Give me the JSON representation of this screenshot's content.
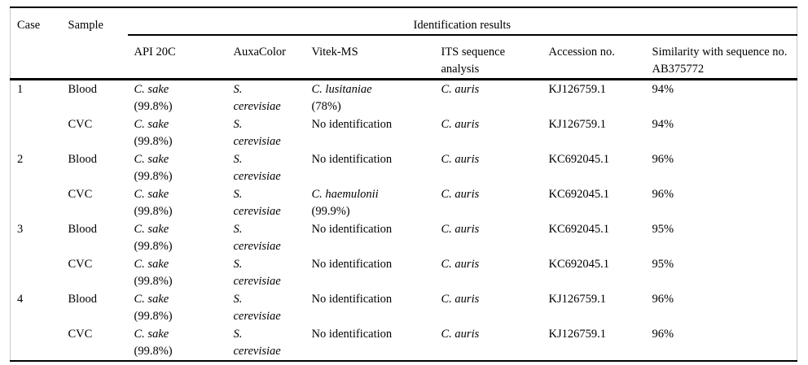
{
  "table": {
    "title": "Identification results table",
    "header": {
      "case": "Case",
      "sample": "Sample",
      "group": "Identification results",
      "columns": [
        "API 20C",
        "AuxaColor",
        "Vitek-MS",
        "ITS sequence analysis",
        "Accession no.",
        "Similarity with sequence no. AB375772"
      ]
    },
    "rows": [
      {
        "case": "1",
        "sample": "Blood",
        "cells": [
          {
            "lines": [
              {
                "t": "C. sake",
                "i": true
              },
              {
                "t": "(99.8%)",
                "i": false
              }
            ]
          },
          {
            "lines": [
              {
                "t": "S.",
                "i": true
              },
              {
                "t": "cerevisiae",
                "i": true
              }
            ]
          },
          {
            "lines": [
              {
                "t": "C. lusitaniae",
                "i": true
              },
              {
                "t": "(78%)",
                "i": false
              }
            ]
          },
          {
            "lines": [
              {
                "t": "C. auris",
                "i": true
              }
            ]
          },
          {
            "lines": [
              {
                "t": "KJ126759.1",
                "i": false
              }
            ]
          },
          {
            "lines": [
              {
                "t": "94%",
                "i": false
              }
            ]
          }
        ]
      },
      {
        "sample": "CVC",
        "cells": [
          {
            "lines": [
              {
                "t": "C. sake",
                "i": true
              },
              {
                "t": "(99.8%)",
                "i": false
              }
            ]
          },
          {
            "lines": [
              {
                "t": "S.",
                "i": true
              },
              {
                "t": "cerevisiae",
                "i": true
              }
            ]
          },
          {
            "lines": [
              {
                "t": "No identification",
                "i": false
              }
            ]
          },
          {
            "lines": [
              {
                "t": "C. auris",
                "i": true
              }
            ]
          },
          {
            "lines": [
              {
                "t": "KJ126759.1",
                "i": false
              }
            ]
          },
          {
            "lines": [
              {
                "t": "94%",
                "i": false
              }
            ]
          }
        ]
      },
      {
        "case": "2",
        "sample": "Blood",
        "cells": [
          {
            "lines": [
              {
                "t": "C. sake",
                "i": true
              },
              {
                "t": "(99.8%)",
                "i": false
              }
            ]
          },
          {
            "lines": [
              {
                "t": "S.",
                "i": true
              },
              {
                "t": "cerevisiae",
                "i": true
              }
            ]
          },
          {
            "lines": [
              {
                "t": "No identification",
                "i": false
              }
            ]
          },
          {
            "lines": [
              {
                "t": "C. auris",
                "i": true
              }
            ]
          },
          {
            "lines": [
              {
                "t": "KC692045.1",
                "i": false
              }
            ]
          },
          {
            "lines": [
              {
                "t": "96%",
                "i": false
              }
            ]
          }
        ]
      },
      {
        "sample": "CVC",
        "cells": [
          {
            "lines": [
              {
                "t": "C. sake",
                "i": true
              },
              {
                "t": "(99.8%)",
                "i": false
              }
            ]
          },
          {
            "lines": [
              {
                "t": "S.",
                "i": true
              },
              {
                "t": "cerevisiae",
                "i": true
              }
            ]
          },
          {
            "lines": [
              {
                "t": "C. haemulonii",
                "i": true
              },
              {
                "t": "(99.9%)",
                "i": false
              }
            ]
          },
          {
            "lines": [
              {
                "t": "C. auris",
                "i": true
              }
            ]
          },
          {
            "lines": [
              {
                "t": "KC692045.1",
                "i": false
              }
            ]
          },
          {
            "lines": [
              {
                "t": "96%",
                "i": false
              }
            ]
          }
        ]
      },
      {
        "case": "3",
        "sample": "Blood",
        "cells": [
          {
            "lines": [
              {
                "t": "C. sake",
                "i": true
              },
              {
                "t": "(99.8%)",
                "i": false
              }
            ]
          },
          {
            "lines": [
              {
                "t": "S.",
                "i": true
              },
              {
                "t": "cerevisiae",
                "i": true
              }
            ]
          },
          {
            "lines": [
              {
                "t": "No identification",
                "i": false
              }
            ]
          },
          {
            "lines": [
              {
                "t": "C. auris",
                "i": true
              }
            ]
          },
          {
            "lines": [
              {
                "t": "KC692045.1",
                "i": false
              }
            ]
          },
          {
            "lines": [
              {
                "t": "95%",
                "i": false
              }
            ]
          }
        ]
      },
      {
        "sample": "CVC",
        "cells": [
          {
            "lines": [
              {
                "t": "C. sake",
                "i": true
              },
              {
                "t": "(99.8%)",
                "i": false
              }
            ]
          },
          {
            "lines": [
              {
                "t": "S.",
                "i": true
              },
              {
                "t": "cerevisiae",
                "i": true
              }
            ]
          },
          {
            "lines": [
              {
                "t": "No identification",
                "i": false
              }
            ]
          },
          {
            "lines": [
              {
                "t": "C. auris",
                "i": true
              }
            ]
          },
          {
            "lines": [
              {
                "t": "KC692045.1",
                "i": false
              }
            ]
          },
          {
            "lines": [
              {
                "t": "95%",
                "i": false
              }
            ]
          }
        ]
      },
      {
        "case": "4",
        "sample": "Blood",
        "cells": [
          {
            "lines": [
              {
                "t": "C. sake",
                "i": true
              },
              {
                "t": "(99.8%)",
                "i": false
              }
            ]
          },
          {
            "lines": [
              {
                "t": "S.",
                "i": true
              },
              {
                "t": "cerevisiae",
                "i": true
              }
            ]
          },
          {
            "lines": [
              {
                "t": "No identification",
                "i": false
              }
            ]
          },
          {
            "lines": [
              {
                "t": "C. auris",
                "i": true
              }
            ]
          },
          {
            "lines": [
              {
                "t": "KJ126759.1",
                "i": false
              }
            ]
          },
          {
            "lines": [
              {
                "t": "96%",
                "i": false
              }
            ]
          }
        ]
      },
      {
        "sample": "CVC",
        "cells": [
          {
            "lines": [
              {
                "t": "C. sake",
                "i": true
              },
              {
                "t": "(99.8%)",
                "i": false
              }
            ]
          },
          {
            "lines": [
              {
                "t": "S.",
                "i": true
              },
              {
                "t": "cerevisiae",
                "i": true
              }
            ]
          },
          {
            "lines": [
              {
                "t": "No identification",
                "i": false
              }
            ]
          },
          {
            "lines": [
              {
                "t": "C. auris",
                "i": true
              }
            ]
          },
          {
            "lines": [
              {
                "t": "KJ126759.1",
                "i": false
              }
            ]
          },
          {
            "lines": [
              {
                "t": "96%",
                "i": false
              }
            ]
          }
        ]
      }
    ],
    "colors": {
      "rule": "#000000",
      "frame": "#c9c9c9",
      "text": "#000000",
      "background": "#ffffff"
    }
  }
}
